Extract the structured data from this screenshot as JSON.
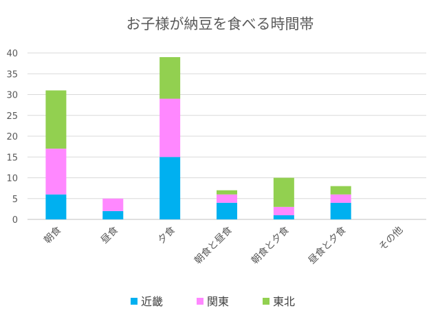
{
  "chart_data": {
    "type": "bar",
    "stacked": true,
    "title": "お子様が納豆を食べる時間帯",
    "categories": [
      "朝食",
      "昼食",
      "夕食",
      "朝食と昼食",
      "朝食と夕食",
      "昼食と夕食",
      "その他"
    ],
    "series": [
      {
        "name": "近畿",
        "color": "#00B0F0",
        "values": [
          6,
          2,
          15,
          4,
          1,
          4,
          0
        ]
      },
      {
        "name": "関東",
        "color": "#FF88FF",
        "values": [
          11,
          3,
          14,
          2,
          2,
          2,
          0
        ]
      },
      {
        "name": "東北",
        "color": "#92D050",
        "values": [
          14,
          0,
          10,
          1,
          7,
          2,
          0
        ]
      }
    ],
    "ylim": [
      0,
      40
    ],
    "yticks": [
      0,
      5,
      10,
      15,
      20,
      25,
      30,
      35,
      40
    ],
    "grid": true,
    "legend": "bottom"
  }
}
